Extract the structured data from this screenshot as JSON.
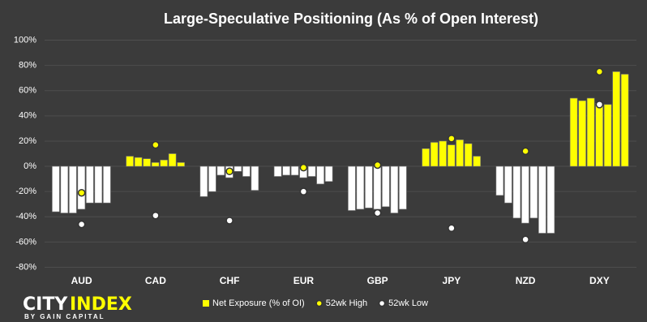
{
  "chart_data": {
    "type": "bar",
    "title": "Large-Speculative Positioning (As % of Open Interest)",
    "categories": [
      "AUD",
      "CAD",
      "CHF",
      "EUR",
      "GBP",
      "JPY",
      "NZD",
      "DXY"
    ],
    "series": [
      {
        "name": "Net Exposure (% of OI)",
        "type": "bar",
        "color": "#ffff00",
        "negative_color": "#ffffff",
        "values": [
          [
            -36,
            -37,
            -37,
            -34,
            -29,
            -29,
            -29
          ],
          [
            8,
            7,
            6,
            3,
            5,
            10,
            3
          ],
          [
            -24,
            -20,
            -7,
            -9,
            -4,
            -8,
            -19
          ],
          [
            -8,
            -7,
            -7,
            -9,
            -8,
            -14,
            -12
          ],
          [
            -35,
            -34,
            -33,
            -34,
            -32,
            -37,
            -34
          ],
          [
            14,
            19,
            20,
            17,
            21,
            18,
            8
          ],
          [
            -23,
            -29,
            -41,
            -45,
            -41,
            -53,
            -53
          ],
          [
            54,
            52,
            54,
            50,
            49,
            75,
            73
          ]
        ]
      },
      {
        "name": "52wk High",
        "type": "scatter",
        "color": "#ffff00",
        "values": [
          -21,
          17,
          -4,
          -1,
          1,
          22,
          12,
          75
        ]
      },
      {
        "name": "52wk Low",
        "type": "scatter",
        "color": "#ffffff",
        "values": [
          -46,
          -39,
          -43,
          -20,
          -37,
          -49,
          -58,
          49
        ]
      }
    ],
    "ylim": [
      -80,
      100
    ],
    "yticks": [
      {
        "value": -80,
        "label": "-80%"
      },
      {
        "value": -60,
        "label": "-60%"
      },
      {
        "value": -40,
        "label": "-40%"
      },
      {
        "value": -20,
        "label": "-20%"
      },
      {
        "value": 0,
        "label": "0%"
      },
      {
        "value": 20,
        "label": "20%"
      },
      {
        "value": 40,
        "label": "40%"
      },
      {
        "value": 60,
        "label": "60%"
      },
      {
        "value": 80,
        "label": "80%"
      },
      {
        "value": 100,
        "label": "100%"
      }
    ],
    "grid": true,
    "legend": "bottom"
  },
  "logo": {
    "brand_left": "CITY",
    "brand_right": "INDEX",
    "tagline": "BY GAIN CAPITAL"
  }
}
